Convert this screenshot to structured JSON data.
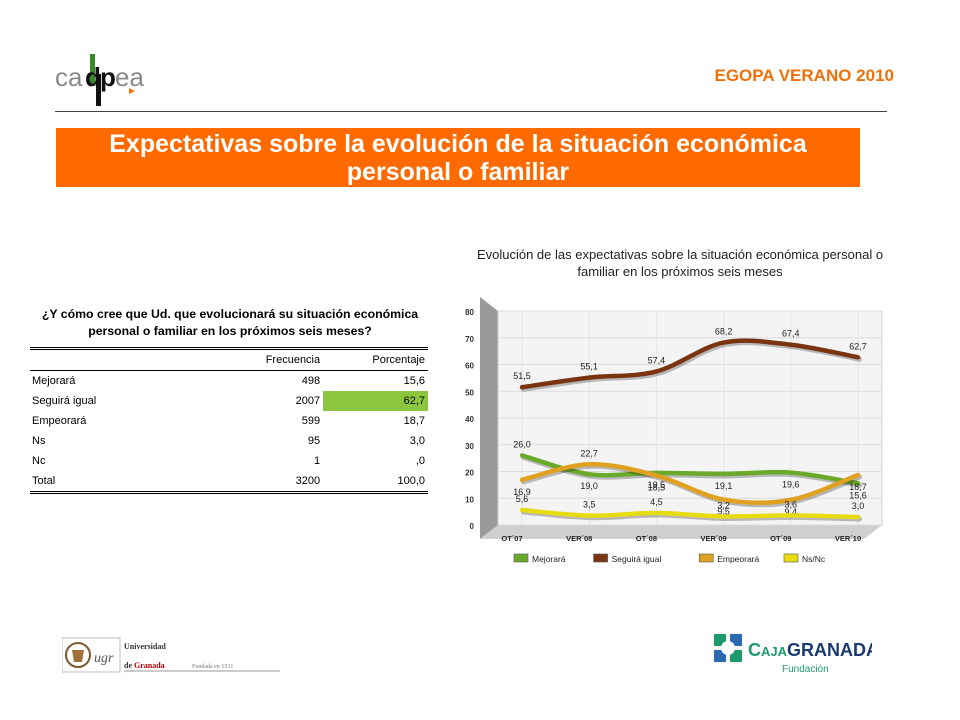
{
  "header": {
    "logo_text": "cadpea",
    "tag": "EGOPA VERANO 2010",
    "title": "Expectativas sobre la evolución de la situación económica personal o familiar"
  },
  "table": {
    "question": "¿Y cómo cree que Ud. que evolucionará su situación económica personal o familiar en los próximos seis meses?",
    "columns": [
      "",
      "Frecuencia",
      "Porcentaje"
    ],
    "rows": [
      {
        "label": "Mejorará",
        "frecuencia": "498",
        "porcentaje": "15,6"
      },
      {
        "label": "Seguirá igual",
        "frecuencia": "2007",
        "porcentaje": "62,7"
      },
      {
        "label": "Empeorará",
        "frecuencia": "599",
        "porcentaje": "18,7"
      },
      {
        "label": "Ns",
        "frecuencia": "95",
        "porcentaje": "3,0"
      },
      {
        "label": "Nc",
        "frecuencia": "1",
        "porcentaje": ",0"
      },
      {
        "label": "Total",
        "frecuencia": "3200",
        "porcentaje": "100,0"
      }
    ],
    "highlight_color": "#8cc63f"
  },
  "chart_data": {
    "type": "line",
    "title": "Evolución de las expectativas sobre la situación económica personal o familiar en los próximos seis meses",
    "x": [
      "OT´07",
      "VER´08",
      "OT´08",
      "VER´09",
      "OT´09",
      "VER´10"
    ],
    "ylim": [
      0,
      80
    ],
    "yticks": [
      0,
      10,
      20,
      30,
      40,
      50,
      60,
      70,
      80
    ],
    "grid": true,
    "legend_position": "bottom",
    "series": [
      {
        "name": "Mejorará",
        "color": "#6aaa2a",
        "values": [
          26.0,
          19.0,
          19.5,
          19.1,
          19.6,
          15.6
        ],
        "labels": [
          "26,0",
          "19,0",
          "19,5",
          "19,1",
          "19,6",
          "15,6"
        ]
      },
      {
        "name": "Seguirá igual",
        "color": "#7a3410",
        "values": [
          51.5,
          55.1,
          57.4,
          68.2,
          67.4,
          62.7
        ],
        "labels": [
          "51,5",
          "55,1",
          "57,4",
          "68,2",
          "67,4",
          "62,7"
        ]
      },
      {
        "name": "Empeorará",
        "color": "#e0a020",
        "values": [
          16.9,
          22.7,
          18.5,
          9.5,
          9.4,
          18.7
        ],
        "labels": [
          "16,9",
          "22,7",
          "18,5",
          "9,5",
          "9,4",
          "18,7"
        ]
      },
      {
        "name": "Ns/Nc",
        "color": "#e6dc10",
        "values": [
          5.6,
          3.5,
          4.5,
          3.2,
          3.6,
          3.0
        ],
        "labels": [
          "5,6",
          "3,5",
          "4,5",
          "3,2",
          "3,6",
          "3,0"
        ]
      }
    ]
  },
  "footer": {
    "ugr_name_line1": "Universidad",
    "ugr_name_line2": "de Granada",
    "ugr_mark": "ugr",
    "ugr_founded": "Fundada en 1531",
    "caja_name_part1": "CAJA",
    "caja_name_part2": "GRANADA",
    "caja_sub": "Fundación"
  }
}
